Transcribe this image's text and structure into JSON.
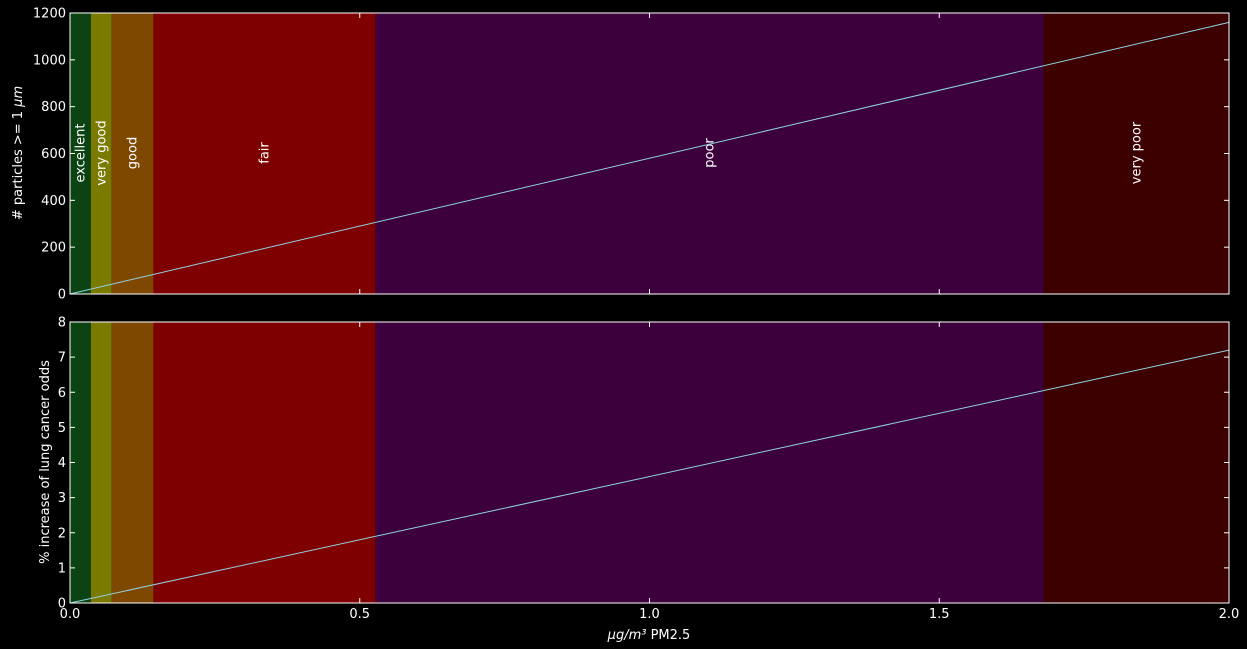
{
  "chart_data": {
    "type": "line",
    "x_axis": {
      "label_math": "μg/m³",
      "label_text": "PM2.5",
      "range": [
        0.0,
        2.0
      ],
      "ticks": [
        0.0,
        0.5,
        1.0,
        1.5,
        2.0
      ],
      "tick_labels": [
        "0.0",
        "0.5",
        "1.0",
        "1.5",
        "2.0"
      ]
    },
    "bands": [
      {
        "label": "excellent",
        "from": 0.0,
        "to": 0.036,
        "color": "#0b4312"
      },
      {
        "label": "very good",
        "from": 0.036,
        "to": 0.072,
        "color": "#7a7a00"
      },
      {
        "label": "good",
        "from": 0.072,
        "to": 0.144,
        "color": "#7f4800"
      },
      {
        "label": "fair",
        "from": 0.144,
        "to": 0.527,
        "color": "#7f0000"
      },
      {
        "label": "poor",
        "from": 0.527,
        "to": 1.68,
        "color": "#3c003c"
      },
      {
        "label": "very poor",
        "from": 1.68,
        "to": 2.0,
        "color": "#3c0000"
      }
    ],
    "panels": [
      {
        "ylabel_prefix": "# particles >= 1",
        "ylabel_unit": "μm",
        "ylim": [
          0,
          1200
        ],
        "yticks": [
          0,
          200,
          400,
          600,
          800,
          1000,
          1200
        ],
        "ytick_labels": [
          "0",
          "200",
          "400",
          "600",
          "800",
          "1000",
          "1200"
        ],
        "series": [
          {
            "name": "particles",
            "x": [
              0.0,
              2.0
            ],
            "y": [
              0,
              1160
            ],
            "color": "#8fd3e3"
          }
        ],
        "show_band_labels": true
      },
      {
        "ylabel": "% increase of lung cancer odds",
        "ylim": [
          0,
          8
        ],
        "yticks": [
          0,
          1,
          2,
          3,
          4,
          5,
          6,
          7,
          8
        ],
        "ytick_labels": [
          "0",
          "1",
          "2",
          "3",
          "4",
          "5",
          "6",
          "7",
          "8"
        ],
        "series": [
          {
            "name": "lung cancer odds",
            "x": [
              0.0,
              2.0
            ],
            "y": [
              0,
              7.2
            ],
            "color": "#8fd3e3"
          }
        ],
        "show_band_labels": false
      }
    ]
  }
}
